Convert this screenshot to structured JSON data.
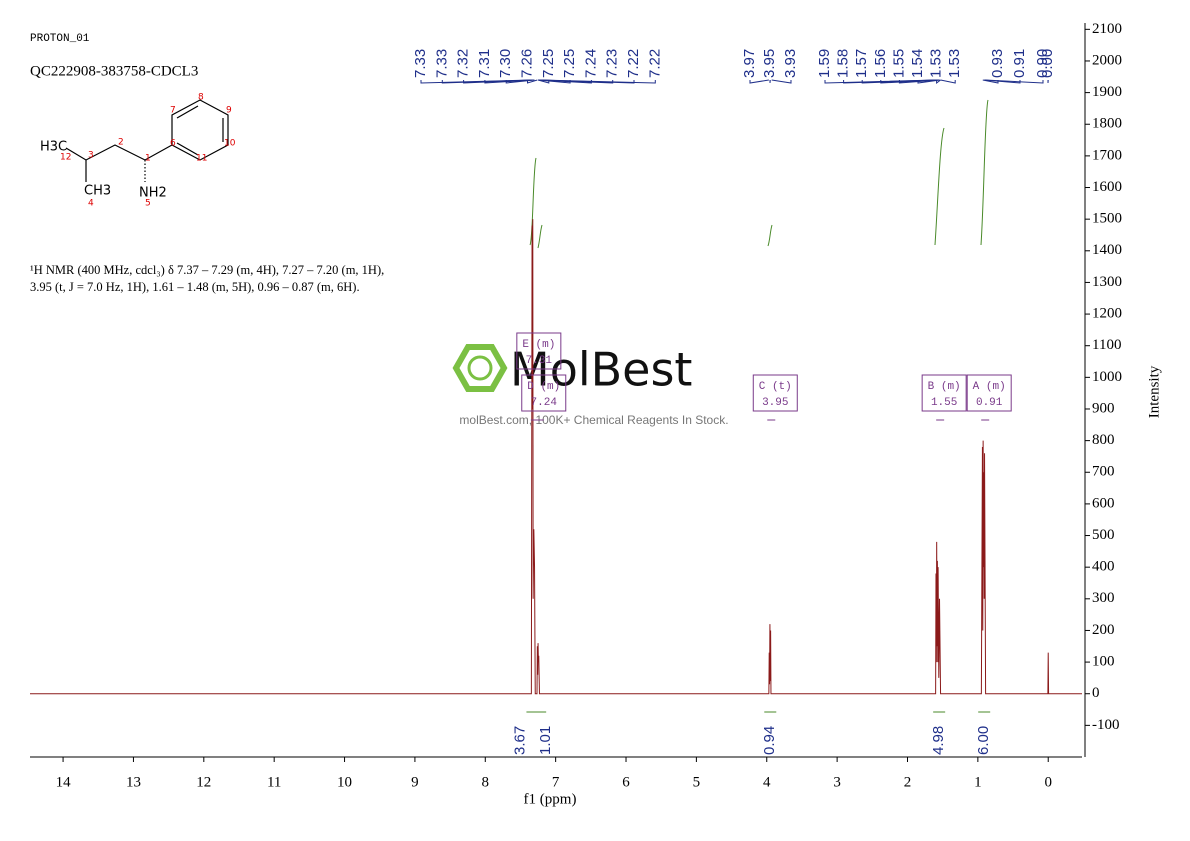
{
  "header": {
    "experiment": "PROTON_01",
    "sample": "QC222908-383758-CDCL3"
  },
  "structure": {
    "labels": [
      "H3C",
      "12",
      "3",
      "CH3",
      "4",
      "2",
      "1",
      "NH2",
      "5",
      "6",
      "7",
      "8",
      "9",
      "10",
      "11"
    ]
  },
  "description": "¹H NMR (400 MHz, cdcl₃) δ 7.37 – 7.29 (m, 4H), 7.27 – 7.20 (m, 1H), 3.95 (t, J = 7.0 Hz, 1H), 1.61 – 1.48 (m, 5H), 0.96 – 0.87 (m, 6H).",
  "watermark": {
    "brand": "MolBest",
    "tagline": "molBest.com, 100K+ Chemical Reagents In Stock."
  },
  "chart_data": {
    "type": "line",
    "xlabel": "f1 (ppm)",
    "ylabel": "Intensity",
    "xlim": [
      14.47,
      -0.48
    ],
    "ylim": [
      -200,
      2120
    ],
    "xticks": [
      14,
      13,
      12,
      11,
      10,
      9,
      8,
      7,
      6,
      5,
      4,
      3,
      2,
      1,
      0
    ],
    "yticks": [
      -100,
      0,
      100,
      200,
      300,
      400,
      500,
      600,
      700,
      800,
      900,
      1000,
      1100,
      1200,
      1300,
      1400,
      1500,
      1600,
      1700,
      1800,
      1900,
      2000,
      2100
    ],
    "series": [
      {
        "color": "#8b1a1a",
        "x": [
          14.47,
          7.345,
          7.335,
          7.33,
          7.325,
          7.32,
          7.31,
          7.3,
          7.29,
          7.265,
          7.26,
          7.255,
          7.25,
          7.245,
          7.24,
          7.23,
          3.97,
          3.965,
          3.96,
          3.955,
          3.95,
          3.945,
          3.94,
          1.6,
          1.595,
          1.59,
          1.585,
          1.58,
          1.575,
          1.57,
          1.565,
          1.555,
          1.545,
          1.53,
          0.95,
          0.935,
          0.93,
          0.925,
          0.92,
          0.915,
          0.91,
          0.905,
          0.89,
          0.005,
          0,
          -0.005,
          -0.48
        ],
        "values": [
          0,
          0,
          1480,
          900,
          1500,
          300,
          520,
          400,
          0,
          0,
          150,
          60,
          160,
          100,
          120,
          0,
          0,
          130,
          30,
          220,
          40,
          200,
          0,
          0,
          380,
          100,
          480,
          150,
          420,
          100,
          400,
          50,
          300,
          0,
          0,
          780,
          200,
          800,
          400,
          700,
          300,
          760,
          0,
          0,
          130,
          0,
          0
        ]
      }
    ],
    "peak_labels": [
      7.33,
      7.33,
      7.32,
      7.31,
      {
        "value": 7.3,
        "label": "7.30"
      },
      7.26,
      7.25,
      7.25,
      7.24,
      7.23,
      7.22,
      7.22,
      3.97,
      3.95,
      3.93,
      1.59,
      1.58,
      1.57,
      1.56,
      1.55,
      1.54,
      1.53,
      1.53,
      0.93,
      0.91,
      {
        "value": 0.9,
        "label": "0.90"
      },
      {
        "value": 0,
        "label": "0.00"
      }
    ],
    "integrals": [
      {
        "value": 3.67,
        "x": 7.33
      },
      {
        "value": 1.01,
        "x": 7.22
      },
      {
        "value": 0.94,
        "x": 3.95
      },
      {
        "value": 4.98,
        "x": 1.55
      },
      {
        "value": 6,
        "label": "6.00",
        "x": 0.91
      }
    ],
    "multiplets": [
      {
        "name": "E (m)",
        "shift": 7.31
      },
      {
        "name": "D (m)",
        "shift": 7.24
      },
      {
        "name": "C (t)",
        "shift": 3.95
      },
      {
        "name": "B (m)",
        "shift": 1.55
      },
      {
        "name": "A (m)",
        "shift": 0.91
      }
    ]
  }
}
